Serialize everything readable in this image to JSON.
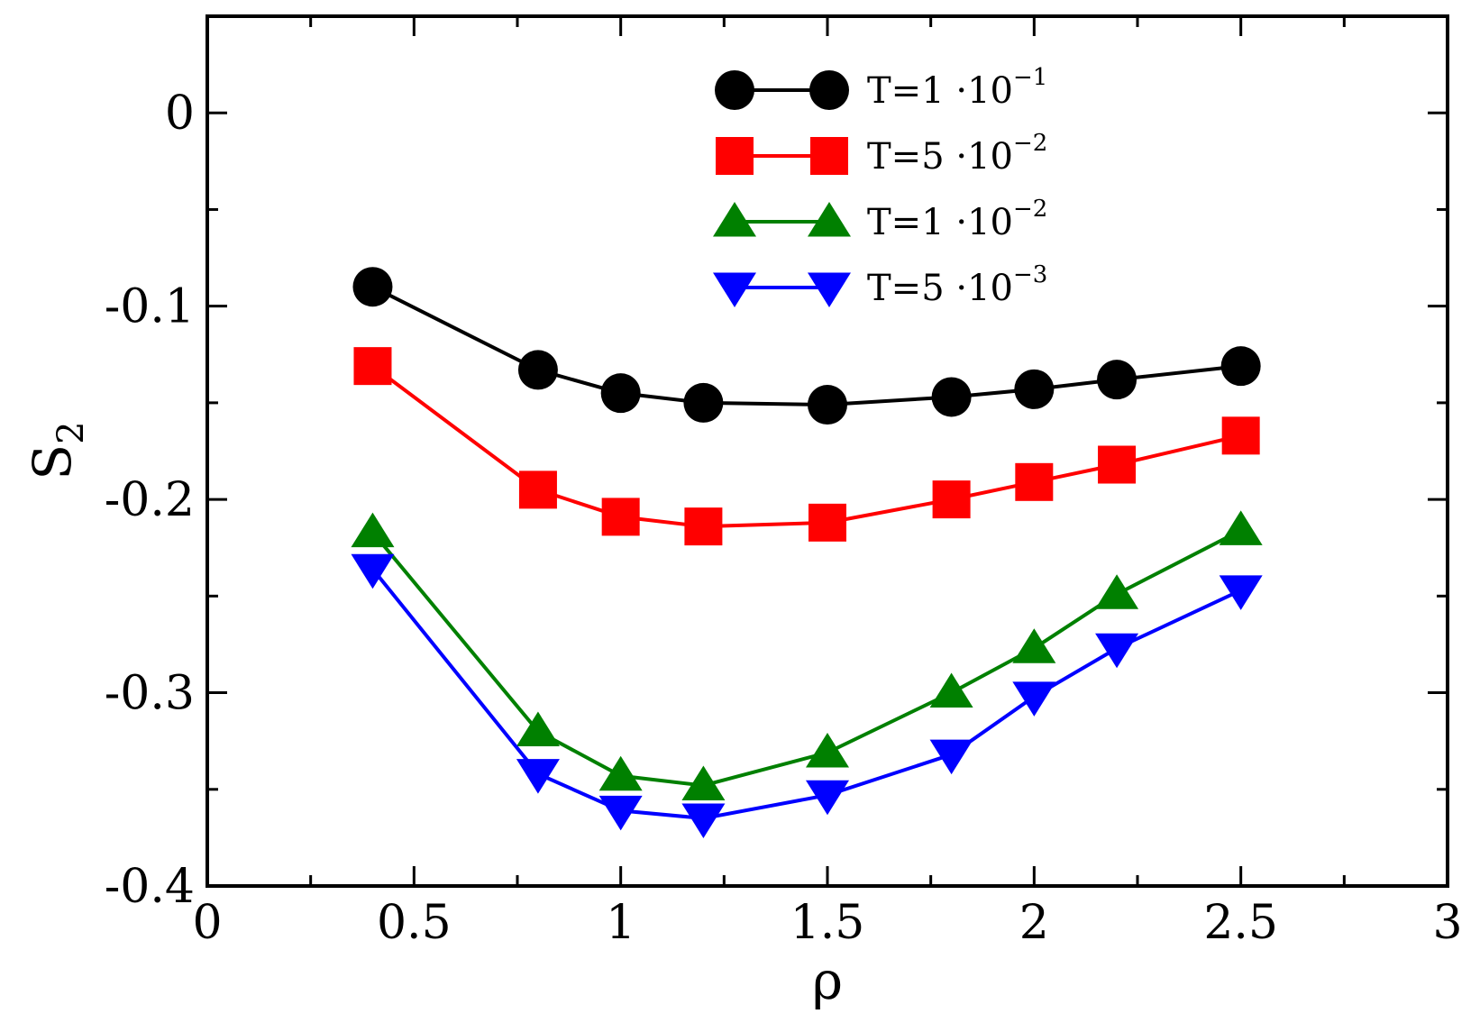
{
  "chart_data": {
    "type": "line",
    "title": "",
    "xlabel": "ρ",
    "ylabel": "S",
    "ylabel_sub": "2",
    "xlim": [
      0,
      3
    ],
    "ylim": [
      -0.4,
      0.05
    ],
    "x_ticks_major": [
      0,
      0.5,
      1,
      1.5,
      2,
      2.5,
      3
    ],
    "x_tick_labels": [
      "0",
      "0.5",
      "1",
      "1.5",
      "2",
      "2.5",
      "3"
    ],
    "x_minor_step": 0.25,
    "y_ticks_major": [
      -0.4,
      -0.3,
      -0.2,
      -0.1,
      0
    ],
    "y_tick_labels": [
      "-0.4",
      "-0.3",
      "-0.2",
      "-0.1",
      "0"
    ],
    "y_minor_step": 0.05,
    "grid": false,
    "legend_position": "top-center",
    "x": [
      0.4,
      0.8,
      1.0,
      1.2,
      1.5,
      1.8,
      2.0,
      2.2,
      2.5
    ],
    "series": [
      {
        "name": "T=1 ·10",
        "exp": "−1",
        "color": "#000000",
        "marker": "circle",
        "values": [
          -0.09,
          -0.133,
          -0.145,
          -0.15,
          -0.151,
          -0.147,
          -0.143,
          -0.138,
          -0.131
        ]
      },
      {
        "name": "T=5 ·10",
        "exp": "−2",
        "color": "#ff0000",
        "marker": "square",
        "values": [
          -0.131,
          -0.195,
          -0.209,
          -0.214,
          -0.212,
          -0.2,
          -0.191,
          -0.182,
          -0.167
        ]
      },
      {
        "name": "T=1 ·10",
        "exp": "−2",
        "color": "#008000",
        "marker": "triangle-up",
        "values": [
          -0.217,
          -0.32,
          -0.343,
          -0.348,
          -0.331,
          -0.3,
          -0.277,
          -0.249,
          -0.216
        ]
      },
      {
        "name": "T=5 ·10",
        "exp": "−3",
        "color": "#0000ff",
        "marker": "triangle-down",
        "values": [
          -0.236,
          -0.342,
          -0.361,
          -0.365,
          -0.353,
          -0.332,
          -0.302,
          -0.277,
          -0.247
        ]
      }
    ]
  }
}
